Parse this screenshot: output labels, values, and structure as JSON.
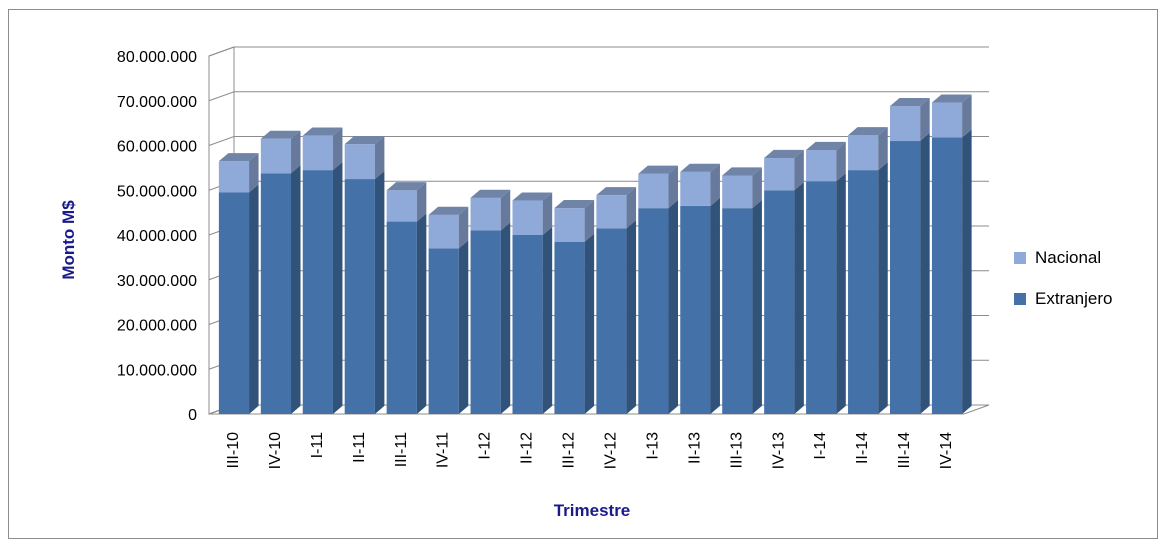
{
  "chart_data": {
    "type": "bar",
    "stacked": true,
    "three_d": true,
    "categories": [
      "III-10",
      "IV-10",
      "I-11",
      "II-11",
      "III-11",
      "IV-11",
      "I-12",
      "II-12",
      "III-12",
      "IV-12",
      "I-13",
      "II-13",
      "III-13",
      "IV-13",
      "I-14",
      "II-14",
      "III-14",
      "IV-14"
    ],
    "series": [
      {
        "name": "Extranjero",
        "color": "#4472a8",
        "values": [
          49500000,
          53800000,
          54500000,
          52500000,
          43000000,
          37000000,
          41000000,
          40000000,
          38500000,
          41500000,
          46000000,
          46500000,
          46000000,
          50000000,
          52000000,
          54500000,
          61000000,
          61800000
        ]
      },
      {
        "name": "Nacional",
        "color": "#8fa9d8",
        "values": [
          7000000,
          7700000,
          7700000,
          7800000,
          7000000,
          7500000,
          7300000,
          7700000,
          7500000,
          7400000,
          7700000,
          7600000,
          7300000,
          7200000,
          7000000,
          7800000,
          7800000,
          7800000
        ]
      }
    ],
    "xlabel": "Trimestre",
    "ylabel": "Monto  M$",
    "ylim": [
      0,
      80000000
    ],
    "yticks": [
      "0",
      "10.000.000",
      "20.000.000",
      "30.000.000",
      "40.000.000",
      "50.000.000",
      "60.000.000",
      "70.000.000",
      "80.000.000"
    ],
    "grid": true,
    "legend_position": "right",
    "legend": [
      "Nacional",
      "Extranjero"
    ]
  }
}
